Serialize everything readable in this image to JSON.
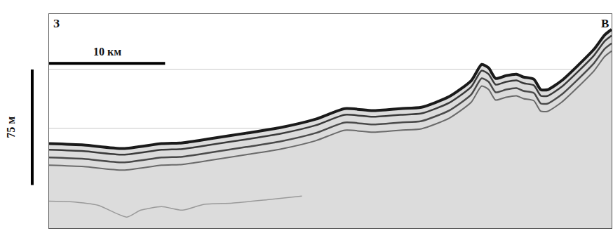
{
  "chart_data": {
    "type": "line",
    "annotations": [
      "З",
      "В"
    ],
    "scale_bars": [
      {
        "label": "10 км",
        "length": 10,
        "axis": "x"
      },
      {
        "label": "75 м",
        "length": 75,
        "axis": "y"
      }
    ],
    "x": [
      0,
      3.0,
      6.4,
      9.7,
      11.5,
      13.9,
      17.0,
      20.0,
      23.0,
      25.5,
      27.9,
      30.3,
      32.1,
      34.5,
      36.4,
      37.3,
      37.9,
      38.5,
      39.4,
      40.3,
      40.9,
      41.8,
      42.4,
      43.0,
      44.2,
      45.5,
      47.0,
      47.9,
      48.5
    ],
    "series": [
      {
        "color": "#1a1a1a",
        "values": [
          84.1,
          85.0,
          87.3,
          84.1,
          83.6,
          80.9,
          77.3,
          73.6,
          68.2,
          61.4,
          62.7,
          61.4,
          60.5,
          53.6,
          43.2,
          32.7,
          35.0,
          41.8,
          40.0,
          39.1,
          40.9,
          42.3,
          49.1,
          49.1,
          43.2,
          34.1,
          22.7,
          13.6,
          10.0
        ]
      },
      {
        "color": "#3a3a3a",
        "values": [
          88.1,
          89.0,
          91.3,
          88.1,
          87.6,
          84.9,
          81.3,
          77.6,
          72.2,
          65.4,
          66.7,
          65.4,
          64.5,
          57.6,
          47.2,
          36.7,
          39.0,
          45.8,
          44.0,
          43.1,
          44.9,
          46.3,
          53.1,
          53.1,
          47.2,
          38.1,
          26.7,
          17.6,
          14.0
        ]
      },
      {
        "color": "#4a4a4a",
        "values": [
          93.1,
          94.0,
          96.3,
          93.1,
          92.6,
          89.9,
          86.3,
          82.6,
          77.2,
          70.4,
          71.7,
          70.4,
          69.5,
          62.6,
          52.2,
          41.7,
          44.0,
          50.8,
          49.0,
          48.1,
          49.9,
          51.3,
          58.1,
          58.1,
          52.2,
          43.1,
          31.7,
          22.6,
          19.0
        ]
      },
      {
        "color": "#6a6a6a",
        "values": [
          98.1,
          99.0,
          101.3,
          98.1,
          97.6,
          94.9,
          91.3,
          87.6,
          82.2,
          75.4,
          76.7,
          75.4,
          74.5,
          67.6,
          57.2,
          46.7,
          49.0,
          55.8,
          54.0,
          53.1,
          54.9,
          56.3,
          63.1,
          63.1,
          57.2,
          48.1,
          36.7,
          27.6,
          24.0
        ]
      },
      {
        "color": "#9a9a9a",
        "x": [
          0,
          1.8,
          4.2,
          6.7,
          7.9,
          9.7,
          11.5,
          13.3,
          15.8,
          18.8,
          21.8
        ],
        "values": [
          121.4,
          121.8,
          124.1,
          131.8,
          127.3,
          125.0,
          127.3,
          123.6,
          122.7,
          120.5,
          118.2
        ]
      }
    ],
    "xlim": [
      0,
      48.5
    ],
    "ylim": [
      139,
      0
    ],
    "yticks": [
      36,
      74,
      112
    ],
    "grid": true,
    "tick_labels": false
  }
}
